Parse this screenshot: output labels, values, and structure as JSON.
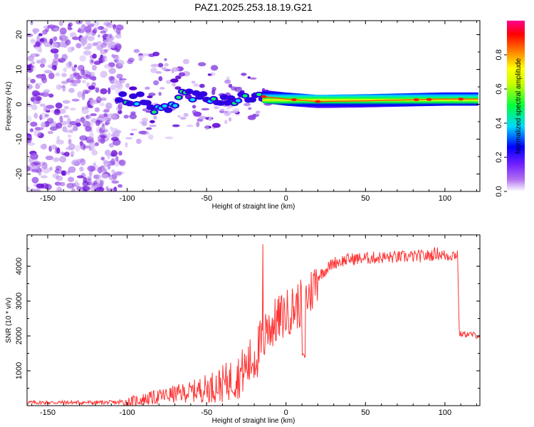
{
  "title": "PAZ1.2025.253.18.19.G21",
  "chart_data": [
    {
      "type": "heatmap",
      "name": "spectrogram",
      "xlabel": "Height of straight line (km)",
      "ylabel": "Frequency (Hz)",
      "xlim": [
        -163,
        122
      ],
      "ylim": [
        -25,
        24
      ],
      "x_ticks": [
        -150,
        -100,
        -50,
        0,
        50,
        100
      ],
      "y_ticks": [
        -20,
        -10,
        0,
        10,
        20
      ],
      "colorbar": {
        "label": "Normalized spectral amplitude",
        "range": [
          0,
          1
        ],
        "ticks": [
          0.0,
          0.2,
          0.4,
          0.6,
          0.8
        ],
        "tick_labels": [
          "0.0",
          "0.2",
          "0.4",
          "0.6",
          "0.8"
        ],
        "colors": [
          "#ffffff",
          "#8a2be2",
          "#0000ff",
          "#00ffff",
          "#00ff00",
          "#ffff00",
          "#ff8000",
          "#ff0000",
          "#ff00aa"
        ]
      },
      "tone_track": [
        {
          "x": -105,
          "f": 1.5
        },
        {
          "x": -90,
          "f": 1.5
        },
        {
          "x": -80,
          "f": -2.0
        },
        {
          "x": -65,
          "f": 2.5
        },
        {
          "x": -50,
          "f": 2.0
        },
        {
          "x": -35,
          "f": 0.5
        },
        {
          "x": -20,
          "f": 2.5
        },
        {
          "x": 0,
          "f": 1.5
        },
        {
          "x": 20,
          "f": 0.8
        },
        {
          "x": 50,
          "f": 1.0
        },
        {
          "x": 80,
          "f": 1.3
        },
        {
          "x": 100,
          "f": 1.5
        },
        {
          "x": 122,
          "f": 1.5
        }
      ]
    },
    {
      "type": "line",
      "name": "snr",
      "xlabel": "Height of straight line (km)",
      "ylabel": "SNR (10 * v/v)",
      "xlim": [
        -163,
        122
      ],
      "ylim": [
        0,
        4900
      ],
      "x_ticks": [
        -150,
        -100,
        -50,
        0,
        50,
        100
      ],
      "y_ticks": [
        1000,
        2000,
        3000,
        4000
      ],
      "color": "#ff3333",
      "series": [
        {
          "name": "SNR",
          "x": [
            -163,
            -130,
            -105,
            -100,
            -90,
            -80,
            -70,
            -60,
            -50,
            -40,
            -30,
            -22,
            -16,
            -12,
            -8,
            -4,
            0,
            5,
            10,
            15,
            20,
            25,
            30,
            35,
            40,
            50,
            60,
            70,
            80,
            90,
            95,
            100,
            104,
            108,
            109,
            115,
            122
          ],
          "y": [
            90,
            90,
            90,
            100,
            180,
            260,
            330,
            400,
            500,
            620,
            850,
            1250,
            1700,
            2100,
            2350,
            2500,
            2650,
            2800,
            2950,
            3200,
            3700,
            3900,
            4100,
            4150,
            4200,
            4230,
            4250,
            4260,
            4280,
            4300,
            4380,
            4300,
            4320,
            4350,
            2050,
            2050,
            2000
          ]
        }
      ]
    }
  ]
}
